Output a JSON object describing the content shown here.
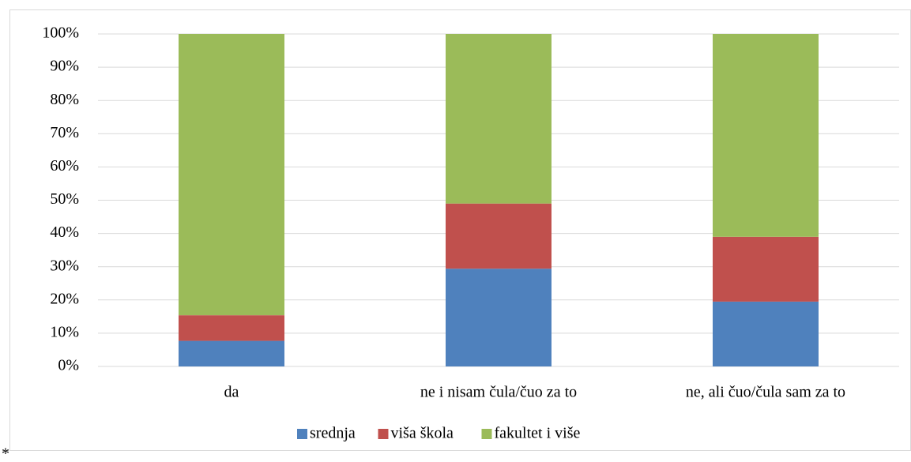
{
  "chart_data": {
    "type": "stacked_bar_100",
    "categories": [
      "da",
      "ne i nisam čula/čuo za to",
      "ne, ali čuo/čula sam za to"
    ],
    "series": [
      {
        "name": "srednja",
        "color": "#4f81bd",
        "values": [
          7.7,
          29.4,
          19.5
        ]
      },
      {
        "name": "viša škola",
        "color": "#c0504d",
        "values": [
          7.7,
          19.6,
          19.5
        ]
      },
      {
        "name": "fakultet i više",
        "color": "#9bbb59",
        "values": [
          84.6,
          51.0,
          61.0
        ]
      }
    ],
    "ylim": [
      0,
      100
    ],
    "yticks": [
      {
        "value": 0,
        "label": "0%"
      },
      {
        "value": 10,
        "label": "10%"
      },
      {
        "value": 20,
        "label": "20%"
      },
      {
        "value": 30,
        "label": "30%"
      },
      {
        "value": 40,
        "label": "40%"
      },
      {
        "value": 50,
        "label": "50%"
      },
      {
        "value": 60,
        "label": "60%"
      },
      {
        "value": 70,
        "label": "70%"
      },
      {
        "value": 80,
        "label": "80%"
      },
      {
        "value": 90,
        "label": "90%"
      },
      {
        "value": 100,
        "label": "100%"
      }
    ],
    "grid": true,
    "legend": "bottom",
    "note": "*"
  }
}
